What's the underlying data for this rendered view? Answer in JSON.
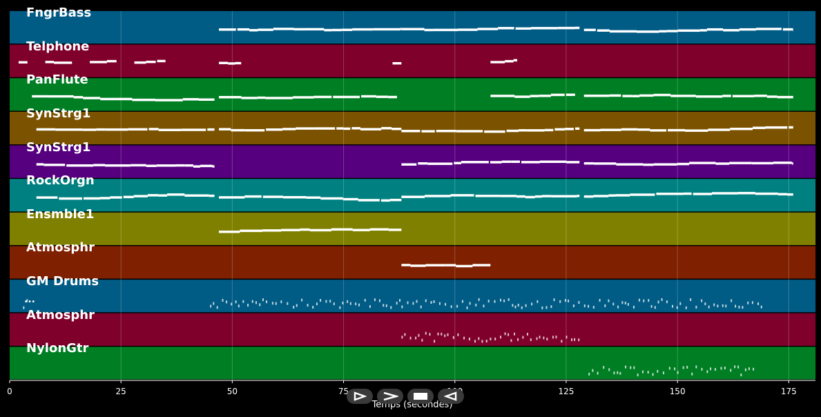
{
  "tracks": [
    {
      "name": "FngrBass",
      "color": "#005b85"
    },
    {
      "name": "Telphone",
      "color": "#7f002b"
    },
    {
      "name": "PanFlute",
      "color": "#007e23"
    },
    {
      "name": "SynStrg1",
      "color": "#7b5200"
    },
    {
      "name": "SynStrg1",
      "color": "#560080"
    },
    {
      "name": "RockOrgn",
      "color": "#008080"
    },
    {
      "name": "Ensmble1",
      "color": "#808000"
    },
    {
      "name": "Atmosphr",
      "color": "#7f2000"
    },
    {
      "name": "GM Drums",
      "color": "#005b85"
    },
    {
      "name": "Atmosphr",
      "color": "#7f002b"
    },
    {
      "name": "NylonGtr",
      "color": "#007e23"
    }
  ],
  "drum_marker": "...",
  "chart_data": {
    "type": "piano-roll",
    "xlabel": "Temps (secondes)",
    "xlim": [
      0,
      181
    ],
    "xticks": [
      0,
      25,
      50,
      75,
      100,
      125,
      150,
      175
    ],
    "grid": true,
    "segments": [
      [
        [
          47,
          88
        ],
        [
          88,
          128
        ],
        [
          129,
          176
        ]
      ],
      [
        [
          2,
          4
        ],
        [
          8,
          14
        ],
        [
          18,
          24
        ],
        [
          28,
          35
        ],
        [
          47,
          52
        ],
        [
          86,
          88
        ],
        [
          108,
          114
        ]
      ],
      [
        [
          5,
          46
        ],
        [
          47,
          87
        ],
        [
          108,
          127
        ],
        [
          129,
          176
        ]
      ],
      [
        [
          6,
          46
        ],
        [
          47,
          88
        ],
        [
          88,
          128
        ],
        [
          129,
          176
        ]
      ],
      [
        [
          6,
          46
        ],
        [
          88,
          128
        ],
        [
          129,
          176
        ]
      ],
      [
        [
          6,
          46
        ],
        [
          47,
          88
        ],
        [
          88,
          128
        ],
        [
          129,
          176
        ]
      ],
      [
        [
          47,
          88
        ]
      ],
      [
        [
          88,
          108
        ]
      ],
      [
        [
          3,
          4
        ],
        [
          45,
          88
        ],
        [
          88,
          169
        ]
      ],
      [
        [
          88,
          128
        ]
      ],
      [
        [
          130,
          167
        ]
      ]
    ]
  },
  "controls": [
    {
      "name": "play-button",
      "icon": "play-icon"
    },
    {
      "name": "fast-forward-button",
      "icon": "fast-forward-icon"
    },
    {
      "name": "stop-button",
      "icon": "stop-icon"
    },
    {
      "name": "rewind-button",
      "icon": "rewind-icon"
    }
  ]
}
